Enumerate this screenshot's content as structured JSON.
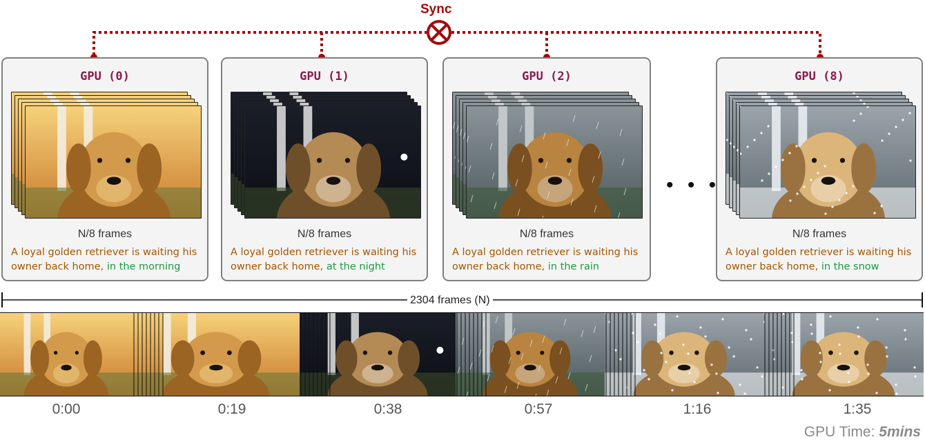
{
  "sync": {
    "label": "Sync",
    "icon": "sync-x-icon",
    "color": "#a40a0a"
  },
  "gpus": [
    {
      "title": "GPU (0)",
      "frames": "N/8 frames",
      "prompt_base": "A loyal golden retriever is waiting his owner back home,",
      "prompt_condition": "in the morning",
      "scene": "morning"
    },
    {
      "title": "GPU (1)",
      "frames": "N/8 frames",
      "prompt_base": "A loyal golden retriever is waiting his owner back home,",
      "prompt_condition": "at the night",
      "scene": "night"
    },
    {
      "title": "GPU (2)",
      "frames": "N/8 frames",
      "prompt_base": "A loyal golden retriever is waiting his owner back home,",
      "prompt_condition": "in the rain",
      "scene": "rain"
    },
    {
      "title": "GPU (8)",
      "frames": "N/8 frames",
      "prompt_base": "A loyal golden retriever is waiting his owner back home,",
      "prompt_condition": "in the snow",
      "scene": "snow"
    }
  ],
  "ellipsis": "• • •",
  "total_frames_label": "2304 frames (N)",
  "timeline": {
    "scenes": [
      "morning",
      "morning",
      "night",
      "rain",
      "snow",
      "snow"
    ],
    "timestamps": [
      "0:00",
      "0:19",
      "0:38",
      "0:57",
      "1:16",
      "1:35"
    ]
  },
  "footer": {
    "prefix": "GPU Time: ",
    "value": "5mins"
  },
  "colors": {
    "gpu_title": "#8a1a50",
    "prompt": "#a35600",
    "condition": "#1c9a44",
    "box_border": "#7f7f7f"
  }
}
